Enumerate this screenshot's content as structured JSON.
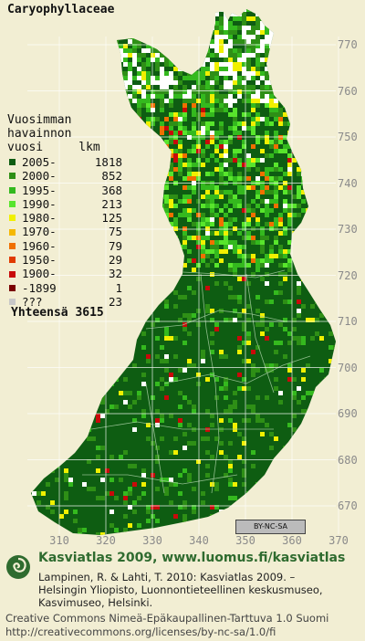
{
  "map": {
    "species_title": "Caryophyllaceae",
    "legend_heading": "Vuosimman\nhavainnon\nvuosi     lkm",
    "legend": [
      {
        "label": "2005-",
        "count": "1818",
        "color": "#0e5d12"
      },
      {
        "label": "2000-",
        "count": "852",
        "color": "#2e8f16"
      },
      {
        "label": "1995-",
        "count": "368",
        "color": "#34b91e"
      },
      {
        "label": "1990-",
        "count": "213",
        "color": "#58e52c"
      },
      {
        "label": "1980-",
        "count": "125",
        "color": "#f0f000"
      },
      {
        "label": "1970-",
        "count": "75",
        "color": "#f5b800"
      },
      {
        "label": "1960-",
        "count": "79",
        "color": "#f07000"
      },
      {
        "label": "1950-",
        "count": "29",
        "color": "#e03a00"
      },
      {
        "label": "1900-",
        "count": "32",
        "color": "#c80a0a"
      },
      {
        "label": "-1899",
        "count": "1",
        "color": "#7a0000"
      },
      {
        "label": "???",
        "count": "23",
        "color": "#c8c8c8"
      }
    ],
    "total_label": "Yhteensä",
    "total_value": "3615",
    "y_axis_labels": [
      "770",
      "760",
      "750",
      "740",
      "730",
      "720",
      "710",
      "700",
      "690",
      "680",
      "670"
    ],
    "x_axis_labels": [
      "310",
      "320",
      "330",
      "340",
      "350",
      "360",
      "370"
    ],
    "license_badge": "BY-NC-SA"
  },
  "credits": {
    "title": "Kasviatlas 2009, www.luomus.fi/kasviatlas",
    "body": "Lampinen, R. & Lahti, T. 2010: Kasviatlas 2009. –\nHelsingin Yliopisto, Luonnontieteellinen keskusmuseo,\nKasvimuseo, Helsinki.",
    "license": "Creative Commons Nimeä-Epäkaupallinen-Tarttuva 1.0 Suomi\nhttp://creativecommons.org/licenses/by-nc-sa/1.0/fi"
  }
}
